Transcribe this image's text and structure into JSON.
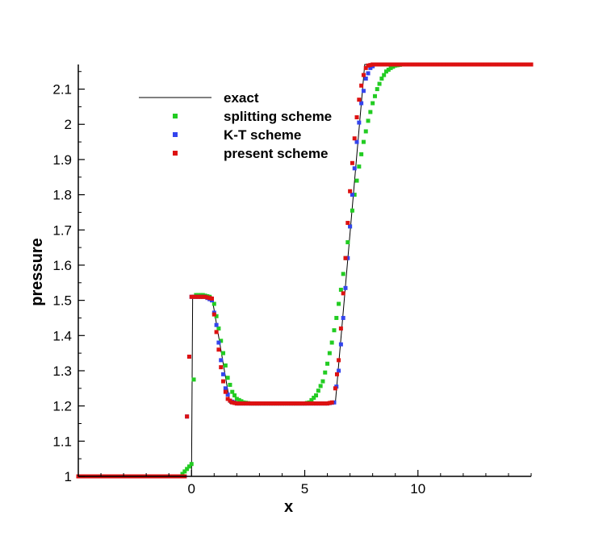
{
  "chart_data": {
    "type": "scatter",
    "xlabel": "x",
    "ylabel": "pressure",
    "xlim": [
      -5,
      15
    ],
    "ylim": [
      1,
      2.17
    ],
    "x_ticks": [
      0,
      5,
      10
    ],
    "y_ticks": [
      1,
      1.1,
      1.2,
      1.3,
      1.4,
      1.5,
      1.6,
      1.7,
      1.8,
      1.9,
      2,
      2.1
    ],
    "x_tick_labels": [
      "0",
      "5",
      "10"
    ],
    "y_tick_labels": [
      "1",
      "1.1",
      "1.2",
      "1.3",
      "1.4",
      "1.5",
      "1.6",
      "1.7",
      "1.8",
      "1.9",
      "2",
      "2.1"
    ],
    "grid": false,
    "legend_position": "top-left",
    "series": [
      {
        "name": "exact",
        "style": "line",
        "color": "#000000",
        "x": [
          -5,
          0,
          0.05,
          0.9,
          1.7,
          6.35,
          7.35,
          7.65,
          15
        ],
        "y": [
          1,
          1,
          1.51,
          1.51,
          1.207,
          1.207,
          1.95,
          2.17,
          2.17
        ]
      },
      {
        "name": "splitting scheme",
        "style": "markers",
        "color": "#22cc22",
        "x": [
          -5,
          -4,
          -3,
          -2,
          -1,
          -0.5,
          0,
          0.2,
          0.5,
          0.8,
          1.0,
          1.2,
          1.4,
          1.6,
          1.8,
          2.0,
          2.3,
          2.6,
          3,
          3.5,
          4,
          4.5,
          5,
          5.2,
          5.5,
          5.8,
          6.0,
          6.2,
          6.4,
          6.6,
          6.8,
          7.0,
          7.2,
          7.4,
          7.6,
          7.8,
          8.0,
          8.2,
          8.4,
          8.6,
          8.8,
          9.0,
          9.3,
          9.6,
          10,
          11,
          12,
          13,
          14,
          15
        ],
        "y": [
          1,
          1,
          1,
          1,
          1,
          1,
          1.035,
          1.515,
          1.515,
          1.51,
          1.49,
          1.42,
          1.35,
          1.28,
          1.24,
          1.22,
          1.21,
          1.207,
          1.207,
          1.207,
          1.207,
          1.207,
          1.207,
          1.21,
          1.23,
          1.27,
          1.32,
          1.38,
          1.45,
          1.53,
          1.62,
          1.71,
          1.8,
          1.88,
          1.95,
          2.01,
          2.06,
          2.1,
          2.13,
          2.15,
          2.16,
          2.167,
          2.17,
          2.17,
          2.17,
          2.17,
          2.17,
          2.17,
          2.17,
          2.17
        ]
      },
      {
        "name": "K-T scheme",
        "style": "markers",
        "color": "#3344ee",
        "x": [
          -5,
          -4,
          -3,
          -2,
          -1,
          -0.3,
          0.0,
          0.3,
          0.6,
          0.9,
          1.1,
          1.3,
          1.5,
          1.7,
          2.0,
          2.5,
          3,
          4,
          5,
          5.5,
          6,
          6.3,
          6.5,
          6.7,
          6.9,
          7.1,
          7.3,
          7.5,
          7.7,
          7.9,
          8.1,
          8.4,
          9,
          10,
          11,
          12,
          13,
          14,
          15
        ],
        "y": [
          1,
          1,
          1,
          1,
          1,
          1,
          1.51,
          1.51,
          1.51,
          1.5,
          1.43,
          1.33,
          1.25,
          1.215,
          1.207,
          1.207,
          1.207,
          1.207,
          1.207,
          1.207,
          1.207,
          1.21,
          1.3,
          1.45,
          1.62,
          1.8,
          1.95,
          2.06,
          2.13,
          2.16,
          2.17,
          2.17,
          2.17,
          2.17,
          2.17,
          2.17,
          2.17,
          2.17,
          2.17
        ]
      },
      {
        "name": "present scheme",
        "style": "markers",
        "color": "#dd1111",
        "x": [
          -5,
          -4,
          -3,
          -2,
          -1,
          -0.3,
          0.0,
          0.3,
          0.6,
          0.9,
          1.0,
          1.1,
          1.2,
          1.3,
          1.4,
          1.5,
          1.6,
          1.8,
          2.0,
          2.5,
          3,
          4,
          5,
          5.5,
          6,
          6.2,
          6.35,
          6.5,
          6.6,
          6.7,
          6.8,
          6.9,
          7.0,
          7.1,
          7.2,
          7.3,
          7.4,
          7.5,
          7.6,
          7.7,
          7.8,
          8.0,
          8.2,
          8.5,
          9,
          10,
          11,
          12,
          13,
          14,
          15
        ],
        "y": [
          1,
          1,
          1,
          1,
          1,
          1,
          1.51,
          1.51,
          1.51,
          1.505,
          1.46,
          1.41,
          1.36,
          1.31,
          1.27,
          1.24,
          1.22,
          1.21,
          1.207,
          1.207,
          1.207,
          1.207,
          1.207,
          1.207,
          1.207,
          1.21,
          1.25,
          1.33,
          1.42,
          1.52,
          1.62,
          1.72,
          1.81,
          1.89,
          1.96,
          2.02,
          2.07,
          2.11,
          2.14,
          2.16,
          2.167,
          2.17,
          2.17,
          2.17,
          2.17,
          2.17,
          2.17,
          2.17,
          2.17,
          2.17,
          2.17
        ]
      }
    ]
  }
}
